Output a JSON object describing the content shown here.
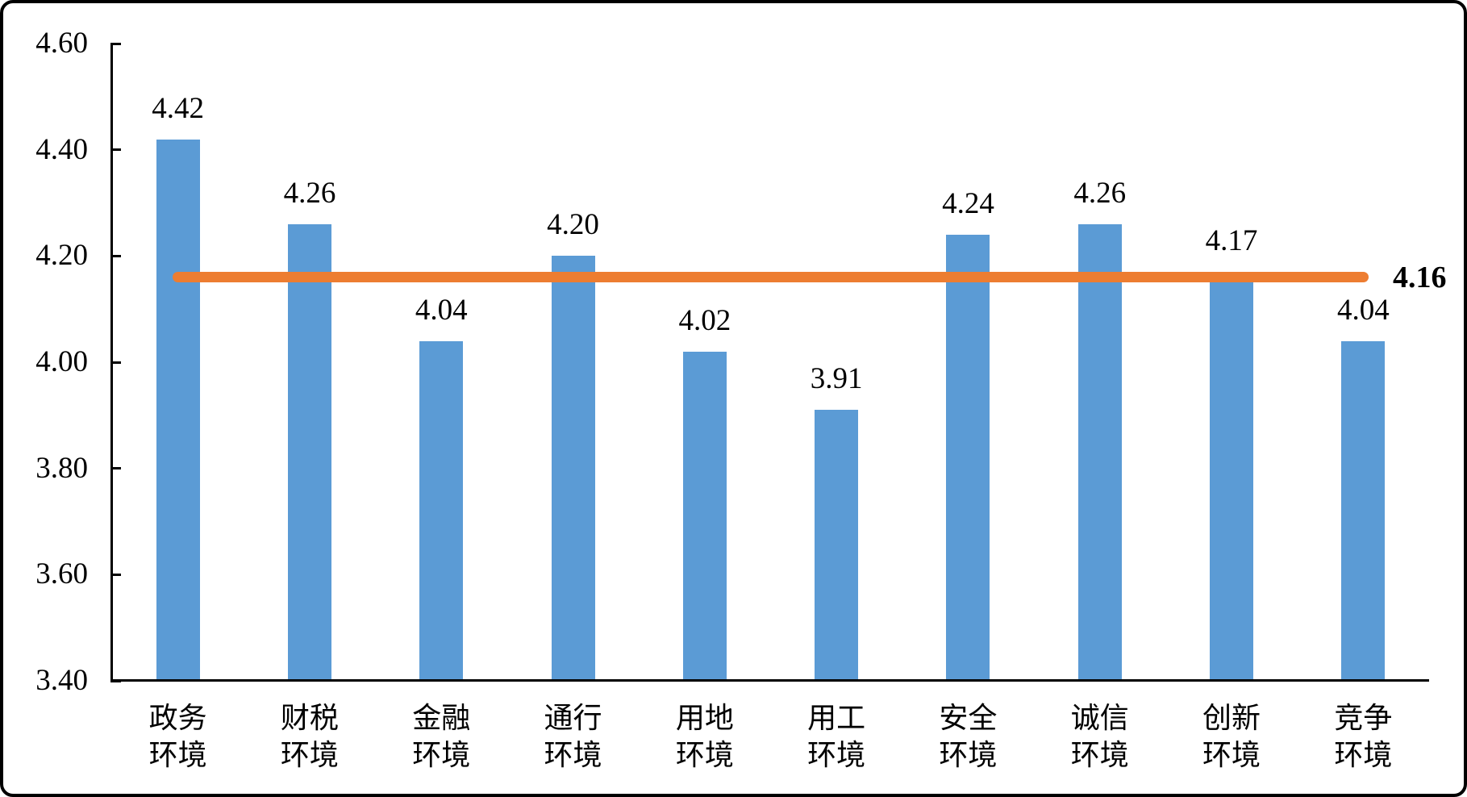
{
  "chart_data": {
    "type": "bar",
    "title": "",
    "xlabel": "",
    "ylabel": "",
    "categories": [
      "政务环境",
      "财税环境",
      "金融环境",
      "通行环境",
      "用地环境",
      "用工环境",
      "安全环境",
      "诚信环境",
      "创新环境",
      "竞争环境"
    ],
    "values": [
      4.42,
      4.26,
      4.04,
      4.2,
      4.02,
      3.91,
      4.24,
      4.26,
      4.17,
      4.04
    ],
    "value_labels": [
      "4.42",
      "4.26",
      "4.04",
      "4.20",
      "4.02",
      "3.91",
      "4.24",
      "4.26",
      "4.17",
      "4.04"
    ],
    "ylim": [
      3.4,
      4.6
    ],
    "y_ticks": [
      {
        "value": 4.6,
        "label": "4.60"
      },
      {
        "value": 4.4,
        "label": "4.40"
      },
      {
        "value": 4.2,
        "label": "4.20"
      },
      {
        "value": 4.0,
        "label": "4.00"
      },
      {
        "value": 3.8,
        "label": "3.80"
      },
      {
        "value": 3.6,
        "label": "3.60"
      },
      {
        "value": 3.4,
        "label": "3.40"
      }
    ],
    "reference_line": {
      "value": 4.16,
      "label": "4.16",
      "color": "#ED7D31"
    },
    "bar_color": "#5B9BD5",
    "axis_color": "#000000",
    "text_color": "#000000",
    "grid": false,
    "legend_position": "none"
  }
}
